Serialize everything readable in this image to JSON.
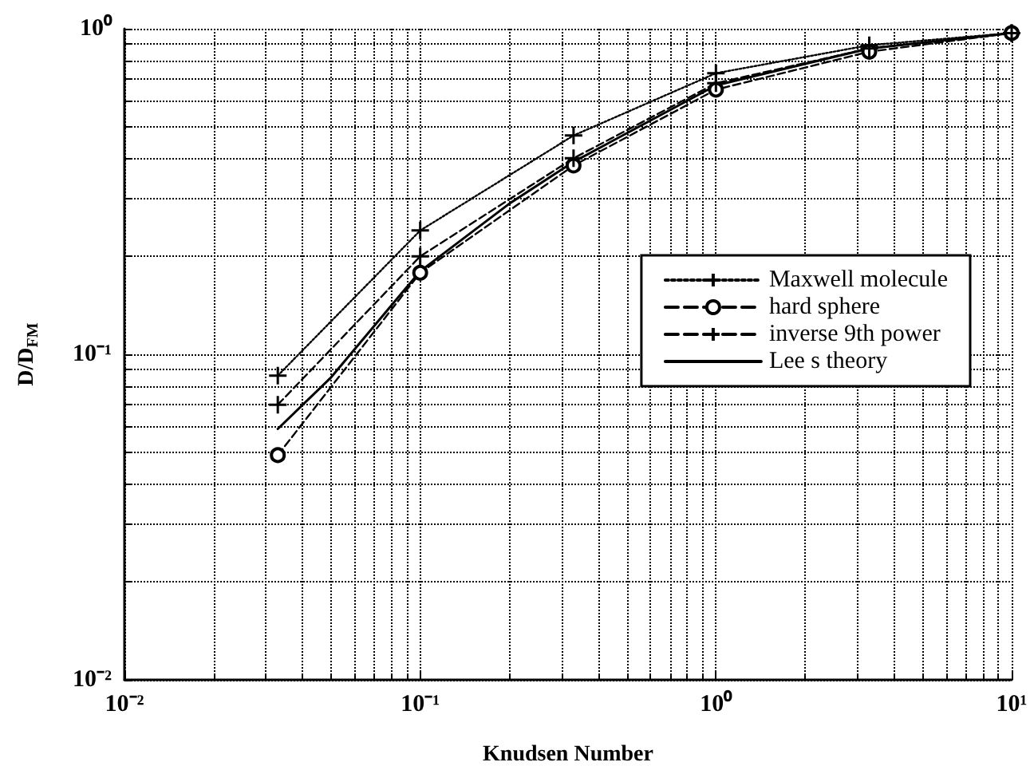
{
  "chart_data": {
    "type": "line",
    "xlabel": "Knudsen Number",
    "ylabel": "D/D$_{FM}$",
    "log": "xy",
    "grid": true,
    "legend": "right",
    "xlim": [
      0.01,
      10
    ],
    "xticks": [
      {
        "value": 0.01,
        "label": "10⁻²"
      },
      {
        "value": 0.1,
        "label": "10⁻¹"
      },
      {
        "value": 1,
        "label": "10⁰"
      },
      {
        "value": 10,
        "label": "10¹"
      }
    ],
    "ylim": [
      0.01,
      1
    ],
    "yticks": [
      {
        "value": 0.01,
        "label": "10⁻²"
      },
      {
        "value": 0.1,
        "label": "10⁻¹"
      },
      {
        "value": 1,
        "label": "10⁰"
      }
    ],
    "series": [
      {
        "name": "Maxwell molecule",
        "color": "#000000",
        "line_style": "dotted",
        "marker": "cross",
        "x": [
          0.033,
          0.1,
          0.33,
          1,
          3.3,
          10
        ],
        "values": [
          0.086,
          0.24,
          0.47,
          0.73,
          0.89,
          0.97
        ]
      },
      {
        "name": "hard sphere",
        "color": "#000000",
        "line_style": "dashed",
        "marker": "circle",
        "x": [
          0.033,
          0.1,
          0.33,
          1,
          3.3,
          10
        ],
        "values": [
          0.049,
          0.178,
          0.38,
          0.65,
          0.85,
          0.97
        ]
      },
      {
        "name": "inverse 9th power",
        "color": "#000000",
        "line_style": "dashed",
        "marker": "cross",
        "x": [
          0.033,
          0.1,
          0.33,
          1,
          3.3,
          10
        ],
        "values": [
          0.07,
          0.2,
          0.4,
          0.68,
          0.87,
          0.97
        ]
      },
      {
        "name": "Lee s theory",
        "color": "#000000",
        "line_style": "solid",
        "marker": "none",
        "x": [
          0.033,
          0.05,
          0.1,
          0.2,
          0.33,
          1,
          3.3,
          10
        ],
        "values": [
          0.059,
          0.085,
          0.18,
          0.29,
          0.39,
          0.67,
          0.87,
          0.97
        ]
      }
    ]
  }
}
